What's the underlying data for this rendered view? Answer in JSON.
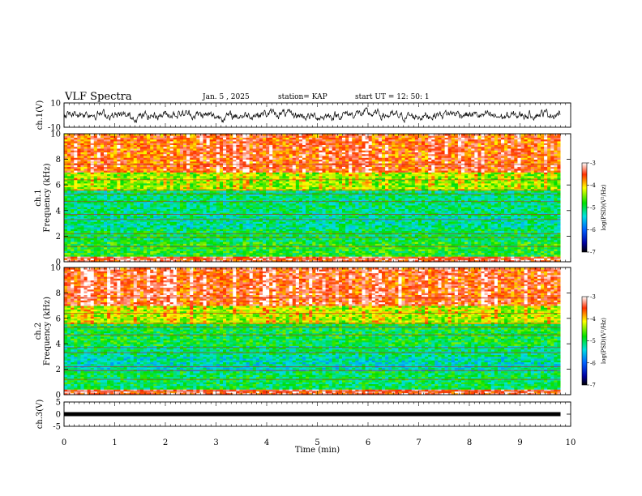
{
  "header": {
    "title": "VLF Spectra",
    "date": "Jan. 5 , 2025",
    "station": "station= KAP",
    "start_ut": "start  UT =   12: 50: 1"
  },
  "chart_data": [
    {
      "type": "line",
      "name": "ch1-waveform",
      "ylabel": "ch.1(V)",
      "ylim": [
        -10,
        10
      ],
      "yticks": [
        "10",
        "-10"
      ],
      "xlim": [
        0,
        10
      ],
      "note": "noisy waveform roughly between -6 and 6 V over ~9.8 min"
    },
    {
      "type": "heatmap",
      "name": "ch1-spectrogram",
      "ylabel": "ch.1\nFrequency (kHz)",
      "ylabel_lines": [
        "ch.1",
        "Frequency (kHz)"
      ],
      "ylim": [
        0,
        10
      ],
      "yticks": [
        "0",
        "2",
        "4",
        "6",
        "8",
        "10"
      ],
      "xlim": [
        0,
        10
      ],
      "data_end_min": 9.8,
      "colorbar": {
        "label": "log(PSD)(V²/Hz)",
        "range": [
          -7,
          -3
        ],
        "ticks": [
          "-3",
          "-4",
          "-5",
          "-6",
          "-7"
        ]
      },
      "bands": [
        {
          "from": 0,
          "to": 0.5,
          "level": -3.4
        },
        {
          "from": 0.5,
          "to": 1.6,
          "level": -4.8
        },
        {
          "from": 1.6,
          "to": 2.6,
          "level": -5.0
        },
        {
          "from": 2.6,
          "to": 3.6,
          "level": -5.2
        },
        {
          "from": 3.6,
          "to": 5.6,
          "level": -5.1
        },
        {
          "from": 5.6,
          "to": 7.0,
          "level": -4.4
        },
        {
          "from": 7.0,
          "to": 10,
          "level": -3.6
        }
      ]
    },
    {
      "type": "heatmap",
      "name": "ch2-spectrogram",
      "ylabel": "ch.2\nFrequency (kHz)",
      "ylabel_lines": [
        "ch.2",
        "Frequency (kHz)"
      ],
      "ylim": [
        0,
        10
      ],
      "yticks": [
        "0",
        "2",
        "4",
        "6",
        "8",
        "10"
      ],
      "xlim": [
        0,
        10
      ],
      "data_end_min": 9.8,
      "colorbar": {
        "label": "log(PSD)(V²/Hz)",
        "range": [
          -7,
          -3
        ],
        "ticks": [
          "-3",
          "-4",
          "-5",
          "-6",
          "-7"
        ]
      },
      "bands": [
        {
          "from": 0,
          "to": 0.5,
          "level": -3.4
        },
        {
          "from": 0.5,
          "to": 1.8,
          "level": -5.0
        },
        {
          "from": 1.8,
          "to": 3.0,
          "level": -5.3
        },
        {
          "from": 3.0,
          "to": 3.8,
          "level": -5.1
        },
        {
          "from": 3.8,
          "to": 5.6,
          "level": -4.9
        },
        {
          "from": 5.6,
          "to": 7.0,
          "level": -4.3
        },
        {
          "from": 7.0,
          "to": 10,
          "level": -3.5
        }
      ]
    },
    {
      "type": "line",
      "name": "ch3-waveform",
      "ylabel": "ch.3(V)",
      "ylim": [
        -5,
        5
      ],
      "yticks": [
        "5",
        "0",
        "-5"
      ],
      "xlim": [
        0,
        10
      ],
      "level": 0,
      "note": "thick flat line near 0 V"
    }
  ],
  "xaxis": {
    "label": "Time (min)",
    "range": [
      0,
      10
    ],
    "ticks": [
      "0",
      "1",
      "2",
      "3",
      "4",
      "5",
      "6",
      "7",
      "8",
      "9",
      "10"
    ]
  }
}
